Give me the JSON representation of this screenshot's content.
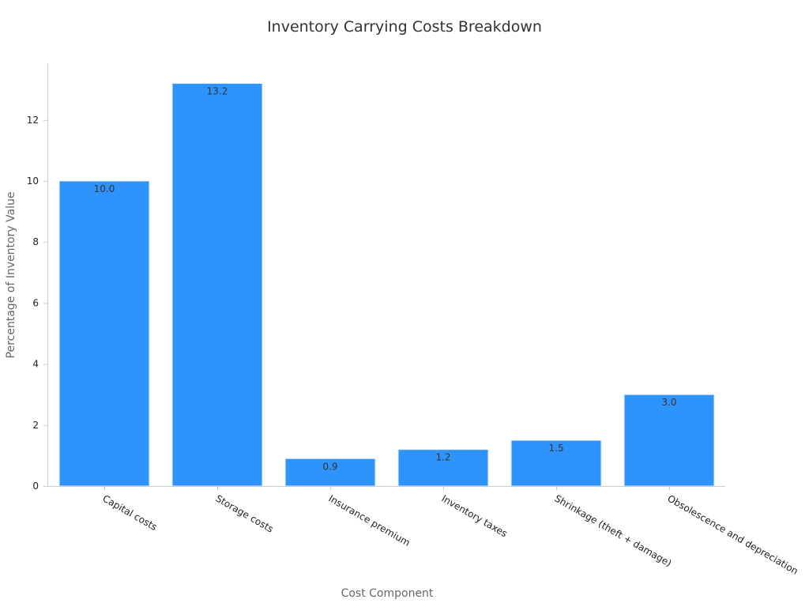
{
  "chart_data": {
    "type": "bar",
    "title": "Inventory Carrying Costs Breakdown",
    "xlabel": "Cost Component",
    "ylabel": "Percentage of Inventory Value",
    "categories": [
      "Capital costs",
      "Storage costs",
      "Insurance premium",
      "Inventory taxes",
      "Shrinkage (theft + damage)",
      "Obsolescence and depreciation"
    ],
    "values": [
      10.0,
      13.2,
      0.9,
      1.2,
      1.5,
      3.0
    ],
    "data_labels": [
      "10.0",
      "13.2",
      "0.9",
      "1.2",
      "1.5",
      "3.0"
    ],
    "ylim": [
      0,
      13.86
    ],
    "yticks": [
      0,
      2,
      4,
      6,
      8,
      10,
      12
    ],
    "grid": false,
    "legend": "none",
    "bar_color": "#2e93fa",
    "bar_edge_color": "#e6f0fb"
  }
}
